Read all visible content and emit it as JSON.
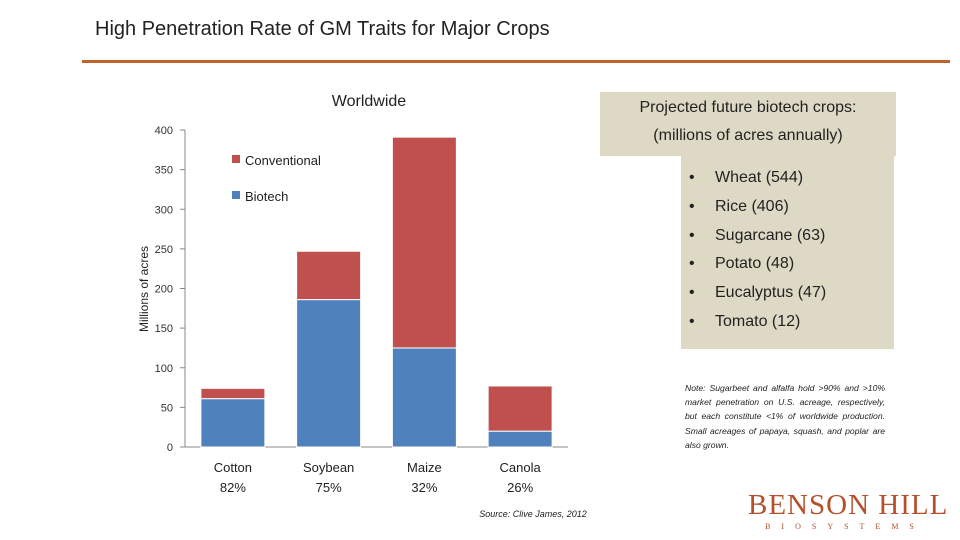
{
  "slide": {
    "title": "High Penetration Rate of GM Traits for Major Crops"
  },
  "chart_data": {
    "type": "bar",
    "stacked": true,
    "title": "Worldwide",
    "xlabel": "",
    "ylabel": "Millions of acres",
    "ylim": [
      0,
      400
    ],
    "yticks": [
      0,
      50,
      100,
      150,
      200,
      250,
      300,
      350,
      400
    ],
    "categories": [
      "Cotton",
      "Soybean",
      "Maize",
      "Canola"
    ],
    "category_sublabels": [
      "82%",
      "75%",
      "32%",
      "26%"
    ],
    "series": [
      {
        "name": "Biotech",
        "color": "#4f81bd",
        "values": [
          61,
          186,
          125,
          20
        ]
      },
      {
        "name": "Conventional",
        "color": "#c0504d",
        "values": [
          13,
          61,
          266,
          57
        ]
      }
    ],
    "legend": {
      "placement": "top-left",
      "entries": [
        "Conventional",
        "Biotech"
      ]
    },
    "grid": false,
    "source": "Source: Clive James, 2012"
  },
  "projected": {
    "title_line1": "Projected future biotech crops:",
    "title_line2": "(millions of acres annually)",
    "bullet": "•",
    "items": [
      "Wheat (544)",
      "Rice (406)",
      "Sugarcane (63)",
      "Potato (48)",
      "Eucalyptus (47)",
      "Tomato (12)"
    ]
  },
  "note": "Note: Sugarbeet and alfalfa hold >90% and >10% market penetration on U.S. acreage, respectively, but each constitute <1% of worldwide production. Small acreages of papaya, squash, and poplar are also grown.",
  "logo": {
    "name": "BENSON HILL",
    "subtitle": "BIOSYSTEMS"
  }
}
